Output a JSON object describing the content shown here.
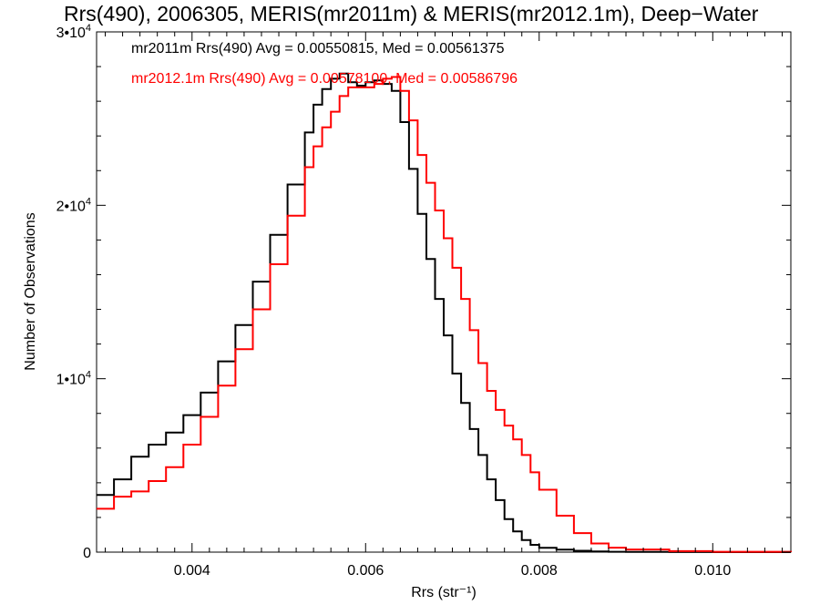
{
  "chart_data": {
    "type": "line",
    "title": "Rrs(490), 2006305, MERIS(mr2011m) & MERIS(mr2012.1m), Deep−Water",
    "xlabel": "Rrs (str⁻¹)",
    "ylabel": "Number of Observations",
    "xlim": [
      0.0029,
      0.0109
    ],
    "ylim": [
      0,
      30000
    ],
    "x_ticks": [
      0.004,
      0.006,
      0.008,
      0.01
    ],
    "x_tick_labels": [
      "0.004",
      "0.006",
      "0.008",
      "0.010"
    ],
    "y_ticks": [
      0,
      10000,
      20000,
      30000
    ],
    "y_tick_labels": [
      {
        "base": "0",
        "exp": ""
      },
      {
        "base": "1•10",
        "exp": "4"
      },
      {
        "base": "2•10",
        "exp": "4"
      },
      {
        "base": "3•10",
        "exp": "4"
      }
    ],
    "grid": false,
    "step_plot": true,
    "annotations": [
      {
        "text": "mr2011m Rrs(490) Avg = 0.00550815, Med = 0.00561375",
        "color": "#000000"
      },
      {
        "text": "mr2012.1m Rrs(490) Avg = 0.00578100, Med = 0.00586796",
        "color": "#ff0000"
      }
    ],
    "series": [
      {
        "name": "mr2011m",
        "color": "#000000",
        "x": [
          0.0029,
          0.0031,
          0.0033,
          0.0035,
          0.0037,
          0.0039,
          0.0041,
          0.0043,
          0.0045,
          0.0047,
          0.0049,
          0.0051,
          0.0053,
          0.0054,
          0.0055,
          0.0056,
          0.0057,
          0.0058,
          0.0059,
          0.006,
          0.0061,
          0.0062,
          0.0063,
          0.0064,
          0.0065,
          0.0066,
          0.0067,
          0.0068,
          0.0069,
          0.007,
          0.0071,
          0.0072,
          0.0073,
          0.0074,
          0.0075,
          0.0076,
          0.0077,
          0.0078,
          0.0079,
          0.008,
          0.0082,
          0.0084,
          0.0086,
          0.0088,
          0.009,
          0.0095,
          0.01,
          0.0109
        ],
        "y": [
          3300,
          4200,
          5500,
          6200,
          6900,
          7900,
          9200,
          11000,
          13100,
          15600,
          18300,
          21200,
          24200,
          25800,
          26700,
          27300,
          27600,
          27100,
          26900,
          27100,
          27200,
          27000,
          26600,
          24800,
          22100,
          19500,
          16900,
          14600,
          12500,
          10300,
          8600,
          7100,
          5600,
          4200,
          3000,
          1900,
          1200,
          700,
          420,
          250,
          140,
          80,
          40,
          20,
          10,
          5,
          2,
          0
        ]
      },
      {
        "name": "mr2012.1m",
        "color": "#ff0000",
        "x": [
          0.0029,
          0.0031,
          0.0033,
          0.0035,
          0.0037,
          0.0039,
          0.0041,
          0.0043,
          0.0045,
          0.0047,
          0.0049,
          0.0051,
          0.0053,
          0.0054,
          0.0055,
          0.0056,
          0.0057,
          0.0058,
          0.0059,
          0.006,
          0.0061,
          0.0062,
          0.0063,
          0.0064,
          0.0065,
          0.0066,
          0.0067,
          0.0068,
          0.0069,
          0.007,
          0.0071,
          0.0072,
          0.0073,
          0.0074,
          0.0075,
          0.0076,
          0.0077,
          0.0078,
          0.0079,
          0.008,
          0.0082,
          0.0084,
          0.0086,
          0.0088,
          0.009,
          0.0095,
          0.01,
          0.0109
        ],
        "y": [
          2500,
          3200,
          3500,
          4100,
          4900,
          6200,
          7800,
          9600,
          11700,
          14000,
          16600,
          19400,
          22200,
          23400,
          24500,
          25400,
          26300,
          26800,
          26800,
          26800,
          27000,
          27300,
          27400,
          26600,
          24900,
          22900,
          21300,
          19700,
          18100,
          16400,
          14600,
          12800,
          10900,
          9300,
          8200,
          7300,
          6500,
          5600,
          4600,
          3600,
          2100,
          1100,
          500,
          260,
          150,
          60,
          20,
          0
        ]
      }
    ]
  }
}
